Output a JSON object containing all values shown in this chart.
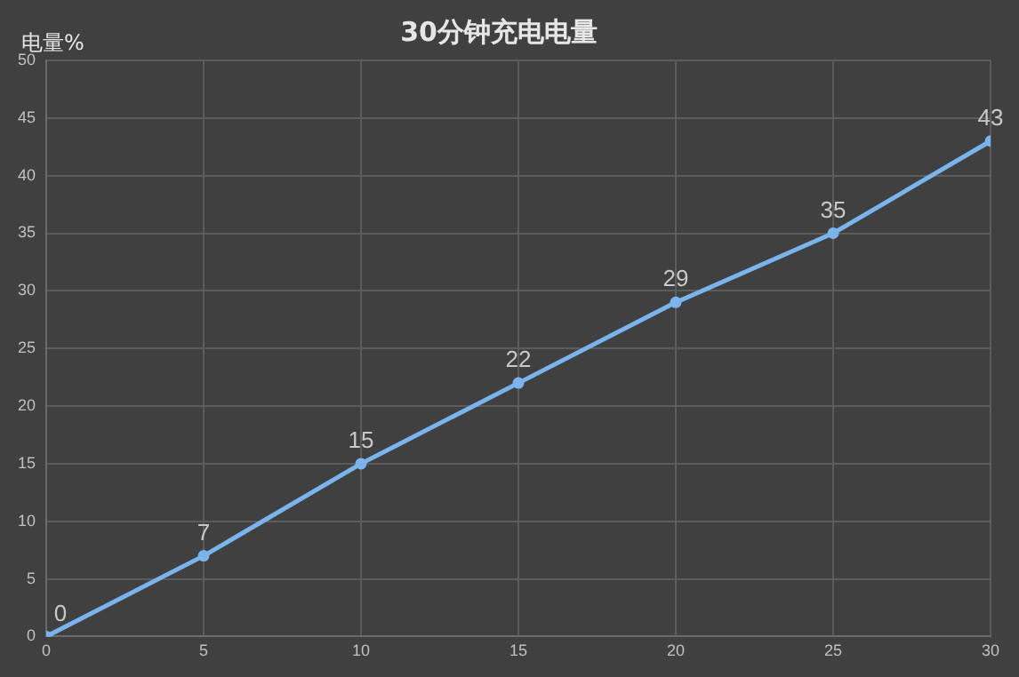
{
  "chart_data": {
    "type": "line",
    "title": "30分钟充电电量",
    "ylabel": "电量%",
    "x": [
      0,
      5,
      10,
      15,
      20,
      25,
      30
    ],
    "series": [
      {
        "color": "#7ab4ec",
        "values": [
          0,
          7,
          15,
          22,
          29,
          35,
          43
        ]
      }
    ],
    "xlim": [
      0,
      30
    ],
    "xticks": [
      0,
      5,
      10,
      15,
      20,
      25,
      30
    ],
    "ylim": [
      0,
      50
    ],
    "yticks": [
      0,
      5,
      10,
      15,
      20,
      25,
      30,
      35,
      40,
      45,
      50
    ],
    "grid": true,
    "legend": false,
    "marker": "circle",
    "line_style": "solid",
    "data_labels": true
  }
}
